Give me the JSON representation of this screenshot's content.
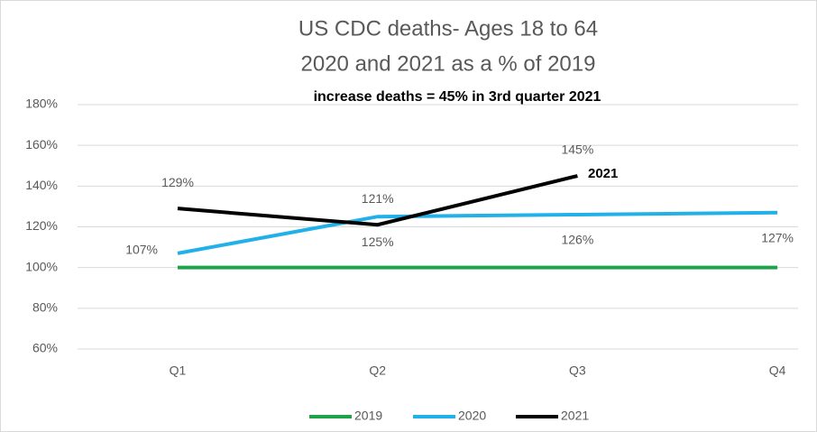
{
  "chart_data": {
    "type": "line",
    "title": [
      "US CDC deaths- Ages 18 to 64",
      "2020 and 2021 as a % of 2019"
    ],
    "annotations": [
      "increase deaths = 45% in 3rd quarter 2021",
      "2021"
    ],
    "categories": [
      "Q1",
      "Q2",
      "Q3",
      "Q4"
    ],
    "series": [
      {
        "name": "2019",
        "color": "#1fa34a",
        "values": [
          100,
          100,
          100,
          100
        ]
      },
      {
        "name": "2020",
        "color": "#22b0e8",
        "values": [
          107,
          125,
          126,
          127
        ],
        "value_labels": [
          "107%",
          "125%",
          "126%",
          "127%"
        ]
      },
      {
        "name": "2021",
        "color": "#000000",
        "values": [
          129,
          121,
          145,
          null
        ],
        "value_labels": [
          "129%",
          "121%",
          "145%",
          null
        ]
      }
    ],
    "ylim": [
      60,
      180
    ],
    "yticks": [
      {
        "value": 60,
        "label": "60%"
      },
      {
        "value": 80,
        "label": "80%"
      },
      {
        "value": 100,
        "label": "100%"
      },
      {
        "value": 120,
        "label": "120%"
      },
      {
        "value": 140,
        "label": "140%"
      },
      {
        "value": 160,
        "label": "160%"
      },
      {
        "value": 180,
        "label": "180%"
      }
    ],
    "grid": true,
    "legend": "bottom"
  }
}
